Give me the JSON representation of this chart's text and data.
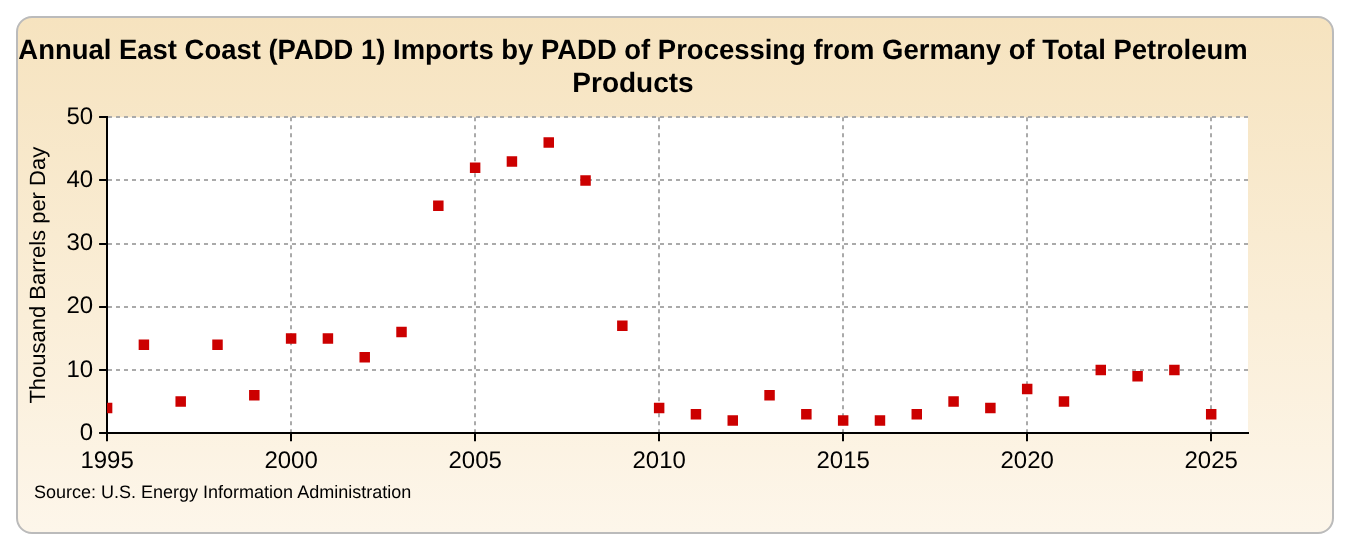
{
  "chart_data": {
    "type": "scatter",
    "title": "Annual East Coast (PADD 1) Imports by PADD of Processing from Germany of Total Petroleum Products",
    "ylabel": "Thousand Barrels per Day",
    "annotations": [
      "Source: U.S. Energy Information Administration"
    ],
    "x": [
      1995,
      1996,
      1997,
      1998,
      1999,
      2000,
      2001,
      2002,
      2003,
      2004,
      2005,
      2006,
      2007,
      2008,
      2009,
      2010,
      2011,
      2012,
      2013,
      2014,
      2015,
      2016,
      2017,
      2018,
      2019,
      2020,
      2021,
      2022,
      2023,
      2024,
      2025
    ],
    "series": [
      {
        "color": "#cc0000",
        "values": [
          4,
          14,
          5,
          14,
          6,
          15,
          15,
          12,
          16,
          36,
          42,
          43,
          46,
          40,
          17,
          4,
          3,
          2,
          6,
          3,
          2,
          2,
          3,
          5,
          4,
          7,
          5,
          10,
          9,
          10,
          3
        ]
      }
    ],
    "xlim": [
      1995,
      2026
    ],
    "xticks": [
      1995,
      2000,
      2005,
      2010,
      2015,
      2020,
      2025
    ],
    "ylim": [
      0,
      50
    ],
    "yticks": [
      0,
      10,
      20,
      30,
      40,
      50
    ],
    "grid": true,
    "marker": "square"
  }
}
